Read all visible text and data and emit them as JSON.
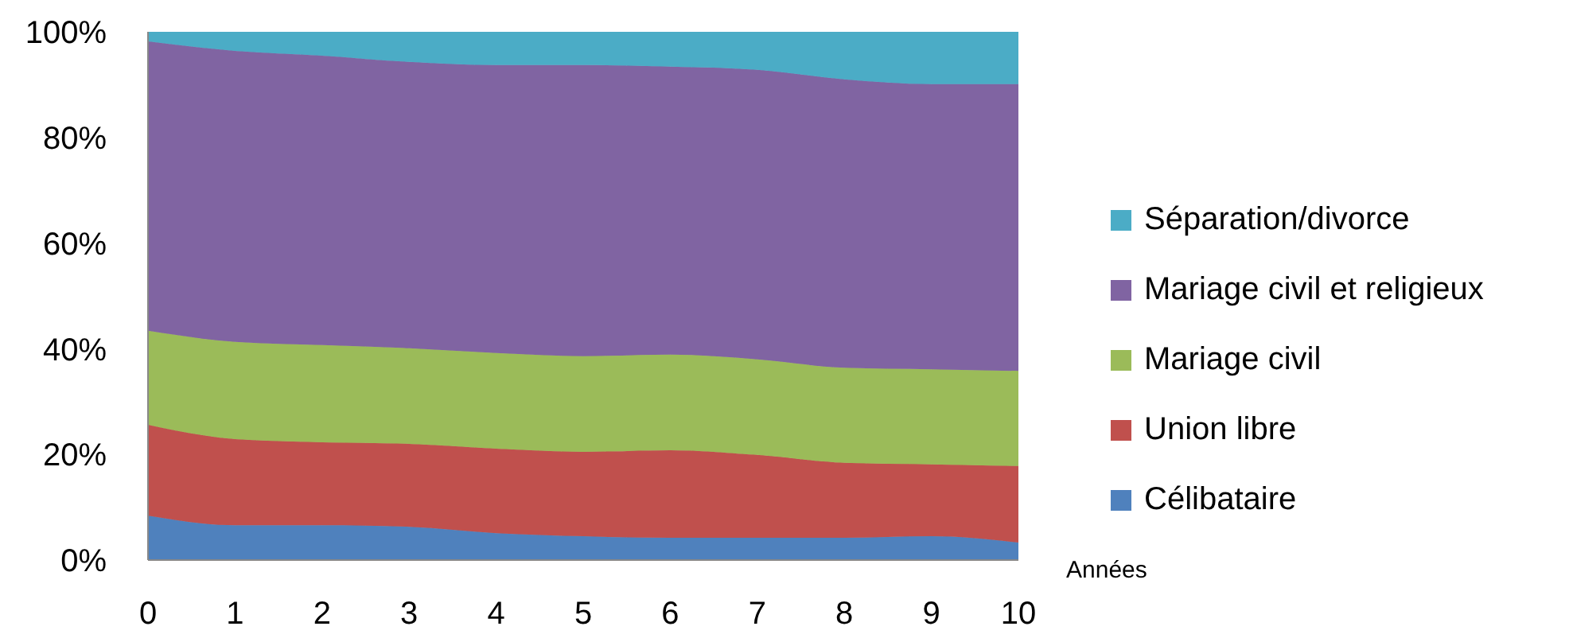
{
  "chart_data": {
    "type": "area",
    "stacked": true,
    "xlabel": "Années",
    "x": [
      0,
      1,
      2,
      3,
      4,
      5,
      6,
      7,
      8,
      9,
      10
    ],
    "xlim": [
      0,
      10
    ],
    "xticks": [
      0,
      1,
      2,
      3,
      4,
      5,
      6,
      7,
      8,
      9,
      10
    ],
    "ylim": [
      0,
      100
    ],
    "yticks": [
      {
        "value": 0,
        "label": "0%"
      },
      {
        "value": 20,
        "label": "20%"
      },
      {
        "value": 40,
        "label": "40%"
      },
      {
        "value": 60,
        "label": "60%"
      },
      {
        "value": 80,
        "label": "80%"
      },
      {
        "value": 100,
        "label": "100%"
      }
    ],
    "grid": false,
    "legend": "right",
    "series": [
      {
        "name": "Célibataire",
        "color": "#4f81bd",
        "values": [
          8.4,
          6.6,
          6.6,
          6.3,
          5.1,
          4.5,
          4.2,
          4.2,
          4.2,
          4.5,
          3.3
        ]
      },
      {
        "name": "Union libre",
        "color": "#c0504d",
        "values": [
          17.2,
          16.3,
          15.7,
          15.7,
          16.0,
          16.0,
          16.6,
          15.7,
          14.2,
          13.6,
          14.5
        ]
      },
      {
        "name": "Mariage civil",
        "color": "#9bbb59",
        "values": [
          17.8,
          18.4,
          18.4,
          18.1,
          18.1,
          18.1,
          18.1,
          18.1,
          18.0,
          18.0,
          18.0
        ]
      },
      {
        "name": "Mariage civil et religieux",
        "color": "#8064a2",
        "values": [
          54.8,
          55.1,
          54.8,
          54.2,
          54.5,
          55.1,
          54.5,
          54.8,
          54.6,
          54.0,
          54.3
        ]
      },
      {
        "name": "Séparation/divorce",
        "color": "#4bacc6",
        "values": [
          1.8,
          3.6,
          4.5,
          5.7,
          6.3,
          6.3,
          6.6,
          7.2,
          9.0,
          9.9,
          9.9
        ]
      }
    ]
  }
}
